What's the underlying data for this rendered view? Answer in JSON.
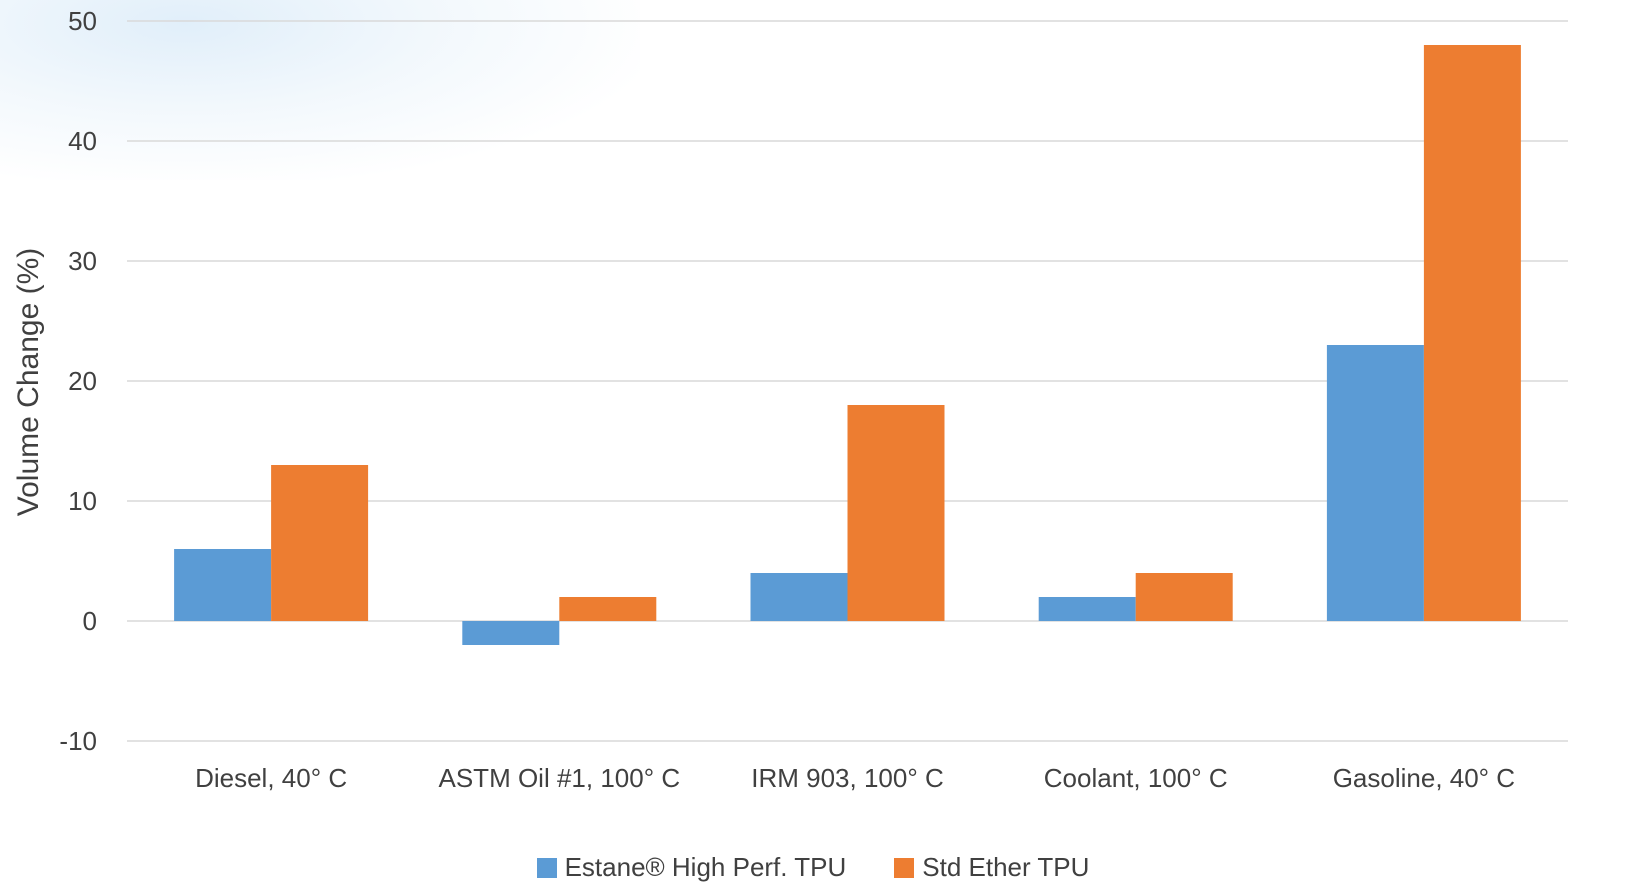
{
  "chart_data": {
    "type": "bar",
    "title": "",
    "xlabel": "",
    "ylabel": "Volume Change (%)",
    "ylim": [
      -10,
      50
    ],
    "yticks": [
      -10,
      0,
      10,
      20,
      30,
      40,
      50
    ],
    "grid": true,
    "legend_position": "bottom",
    "categories": [
      "Diesel, 40° C",
      "ASTM Oil #1, 100° C",
      "IRM 903, 100° C",
      "Coolant, 100° C",
      "Gasoline, 40° C"
    ],
    "series": [
      {
        "name": "Estane® High Perf. TPU",
        "color": "#5b9bd5",
        "values": [
          6,
          -2,
          4,
          2,
          23
        ]
      },
      {
        "name": "Std Ether TPU",
        "color": "#ed7d31",
        "values": [
          13,
          2,
          18,
          4,
          48
        ]
      }
    ]
  }
}
